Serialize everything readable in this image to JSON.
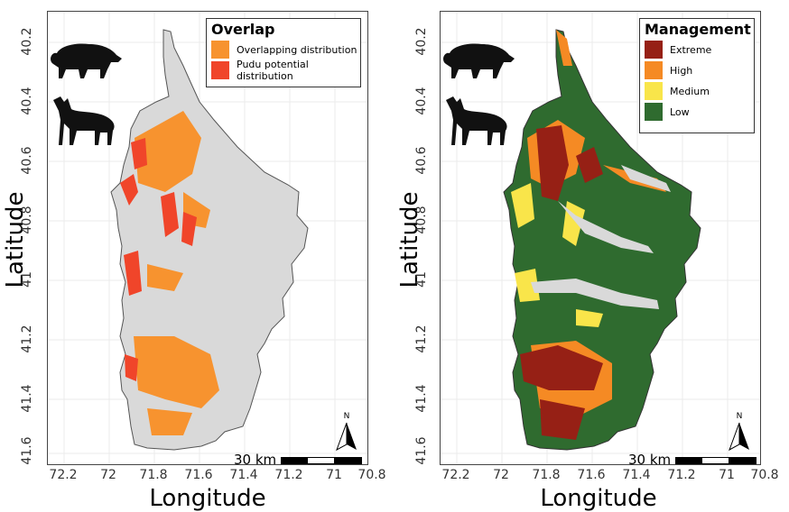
{
  "colors": {
    "background_land": "#d9d9d9",
    "overlap": "#f7932f",
    "pudu": "#f0452a",
    "extreme": "#962015",
    "high": "#f58a24",
    "medium": "#f9e54a",
    "low": "#2f6b2f"
  },
  "axes": {
    "xlabel": "Longitude",
    "ylabel": "Latitude",
    "x_ticks": [
      "72.2",
      "72",
      "71.8",
      "71.6",
      "71.4",
      "71.2",
      "71",
      "70.8"
    ],
    "y_ticks": [
      "40.2",
      "40.4",
      "40.6",
      "40.8",
      "41",
      "41.2",
      "41.4",
      "41.6"
    ]
  },
  "left_legend": {
    "title": "Overlap",
    "items": [
      {
        "label": "Overlapping distribution",
        "color": "#f7932f"
      },
      {
        "label": "Pudu potential distribution",
        "color": "#f0452a"
      }
    ]
  },
  "right_legend": {
    "title": "Management",
    "items": [
      {
        "label": "Extreme",
        "color": "#962015"
      },
      {
        "label": "High",
        "color": "#f58a24"
      },
      {
        "label": "Medium",
        "color": "#f9e54a"
      },
      {
        "label": "Low",
        "color": "#2f6b2f"
      }
    ]
  },
  "scale_bar": {
    "label": "30 km"
  },
  "north_arrow": {
    "label": "N"
  },
  "icons": [
    "wild-boar-silhouette-icon",
    "pudu-deer-silhouette-icon"
  ]
}
